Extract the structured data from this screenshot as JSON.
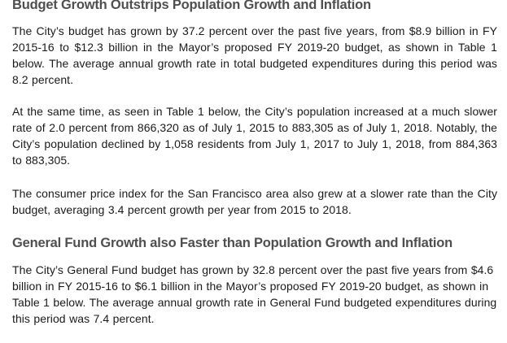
{
  "sections": [
    {
      "heading": "Budget Growth Outstrips Population Growth and Inflation",
      "paragraphs": [
        "The City’s budget has grown by 37.2 percent over the past five years, from $8.9 billion in FY 2015-16 to $12.3 billion in the Mayor’s proposed FY 2019-20 budget, as shown in Table 1 below. The average annual growth rate in total budgeted expenditures during this period was 8.2 percent.",
        "At the same time, as seen in Table 1 below, the City’s population increased at a much slower rate of 2.0 percent from 866,320 as of July 1, 2015 to 883,305 as of July 1, 2018. Notably, the City’s population declined by 1,058 residents from July 1, 2017 to July 1, 2018, from 884,363 to 883,305.",
        "The consumer price index for the San Francisco area also grew at a slower rate than the City budget, averaging 3.4 percent growth per year from 2015 to 2018."
      ]
    },
    {
      "heading": "General Fund Growth also Faster than Population Growth and Inflation",
      "paragraphs": [
        "The City’s General Fund budget has grown by 32.8 percent over the past five years from $4.6 billion in FY 2015-16 to $6.1 billion in the Mayor’s proposed FY 2019-20 budget, as shown in Table 1 below. The average annual growth rate in General Fund budgeted expenditures during this period was 7.4 percent."
      ]
    }
  ]
}
